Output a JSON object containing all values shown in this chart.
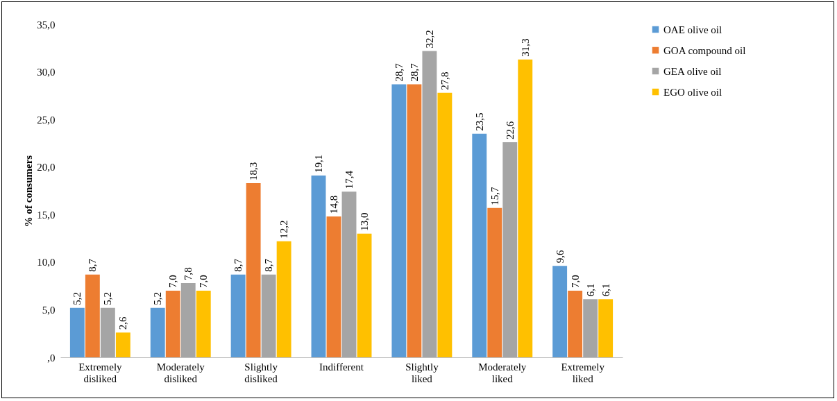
{
  "chart_data": {
    "type": "bar",
    "ylabel": "% of consumers",
    "categories": [
      "Extremely disliked",
      "Moderately disliked",
      "Slightly disliked",
      "Indifferent",
      "Slightly liked",
      "Moderately liked",
      "Extremely liked"
    ],
    "series": [
      {
        "name": "OAE olive oil",
        "color": "#5b9bd5",
        "values": [
          5.2,
          5.2,
          8.7,
          19.1,
          28.7,
          23.5,
          9.6
        ],
        "value_labels": [
          "5,2",
          "5,2",
          "8,7",
          "19,1",
          "28,7",
          "23,5",
          "9,6"
        ]
      },
      {
        "name": "GOA compound oil",
        "color": "#ed7d31",
        "values": [
          8.7,
          7.0,
          18.3,
          14.8,
          28.7,
          15.7,
          7.0
        ],
        "value_labels": [
          "8,7",
          "7,0",
          "18,3",
          "14,8",
          "28,7",
          "15,7",
          "7,0"
        ]
      },
      {
        "name": "GEA olive oil",
        "color": "#a5a5a5",
        "values": [
          5.2,
          7.8,
          8.7,
          17.4,
          32.2,
          22.6,
          6.1
        ],
        "value_labels": [
          "5,2",
          "7,8",
          "8,7",
          "17,4",
          "32,2",
          "22,6",
          "6,1"
        ]
      },
      {
        "name": "EGO olive oil",
        "color": "#ffc000",
        "values": [
          2.6,
          7.0,
          12.2,
          13.0,
          27.8,
          31.3,
          6.1
        ],
        "value_labels": [
          "2,6",
          "7,0",
          "12,2",
          "13,0",
          "27,8",
          "31,3",
          "6,1"
        ]
      }
    ],
    "ylim": [
      0,
      35
    ],
    "yticks": [
      {
        "value": 0,
        "label": ",0"
      },
      {
        "value": 5,
        "label": "5,0"
      },
      {
        "value": 10,
        "label": "10,0"
      },
      {
        "value": 15,
        "label": "15,0"
      },
      {
        "value": 20,
        "label": "20,0"
      },
      {
        "value": 25,
        "label": "25,0"
      },
      {
        "value": 30,
        "label": "30,0"
      },
      {
        "value": 35,
        "label": "35,0"
      }
    ],
    "grid": false,
    "legend": "right"
  }
}
